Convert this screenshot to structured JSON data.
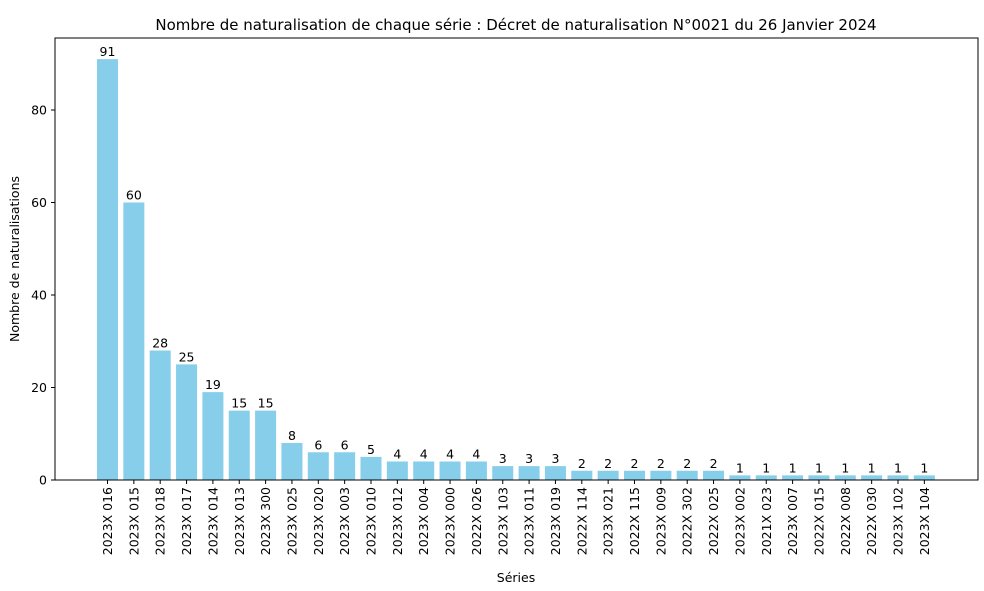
{
  "chart_data": {
    "type": "bar",
    "title": "Nombre de naturalisation de chaque série : Décret de naturalisation N°0021 du 26 Janvier 2024",
    "xlabel": "Séries",
    "ylabel": "Nombre de naturalisations",
    "ylim": [
      0,
      95.5
    ],
    "yticks": [
      0,
      20,
      40,
      60,
      80
    ],
    "grid": false,
    "bar_color": "#87ceeb",
    "categories": [
      "2023X 016",
      "2023X 015",
      "2023X 018",
      "2023X 017",
      "2023X 014",
      "2023X 013",
      "2023X 300",
      "2023X 025",
      "2023X 020",
      "2023X 003",
      "2023X 010",
      "2023X 012",
      "2023X 004",
      "2023X 000",
      "2022X 026",
      "2023X 103",
      "2023X 011",
      "2023X 019",
      "2022X 114",
      "2023X 021",
      "2022X 115",
      "2023X 009",
      "2022X 302",
      "2022X 025",
      "2023X 002",
      "2021X 023",
      "2023X 007",
      "2022X 015",
      "2022X 008",
      "2022X 030",
      "2023X 102",
      "2023X 104"
    ],
    "values": [
      91,
      60,
      28,
      25,
      19,
      15,
      15,
      8,
      6,
      6,
      5,
      4,
      4,
      4,
      4,
      3,
      3,
      3,
      2,
      2,
      2,
      2,
      2,
      2,
      1,
      1,
      1,
      1,
      1,
      1,
      1,
      1
    ]
  }
}
